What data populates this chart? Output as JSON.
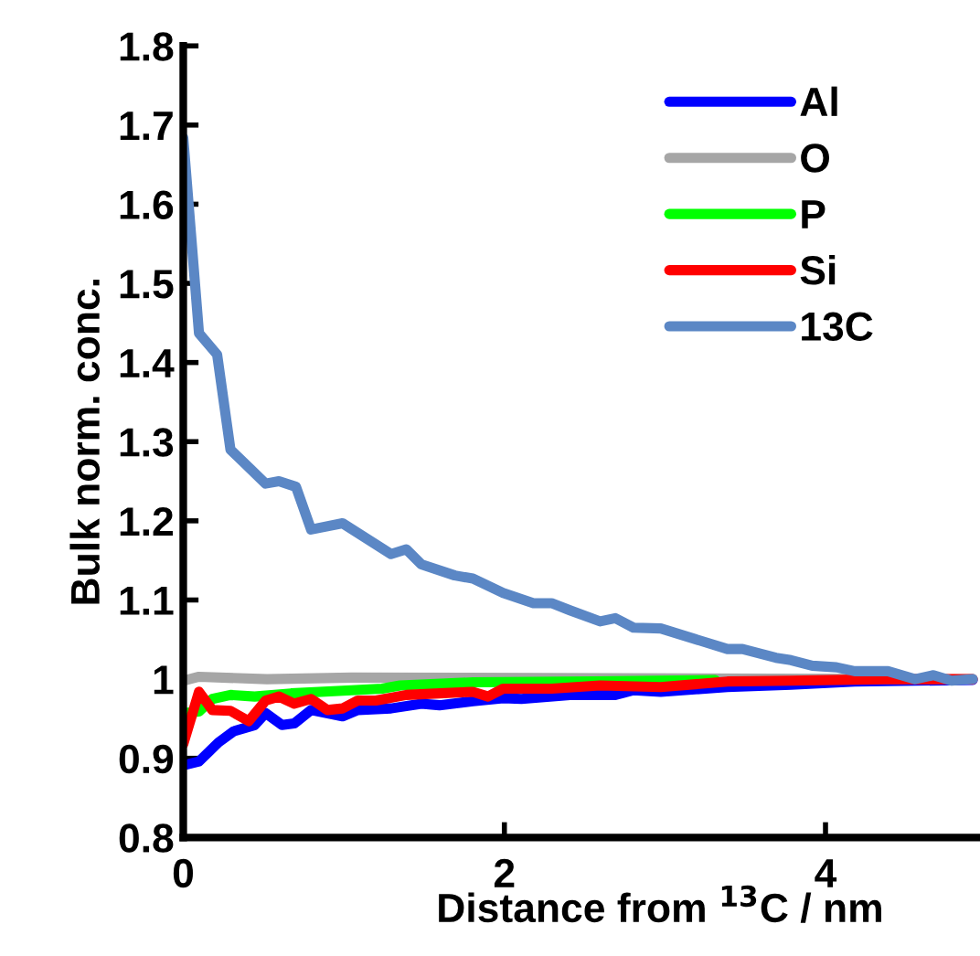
{
  "chart_data": {
    "type": "line",
    "xlabel": "Distance from $^{13}$C / nm",
    "ylabel": "Bulk norm. conc.",
    "xlim": [
      0,
      4.95
    ],
    "xticks": [
      0,
      2,
      4
    ],
    "ylim": [
      0.8,
      1.8
    ],
    "yticks": [
      0.8,
      0.9,
      {
        "value": 1.0,
        "label": "1"
      },
      1.1,
      1.2,
      1.3,
      1.4,
      1.5,
      1.6,
      1.7,
      1.8
    ],
    "grid": false,
    "legend": "top right",
    "marker": "none",
    "line_style": "solid",
    "series": [
      {
        "name": "Al",
        "color": "#0000ff",
        "x": [
          0,
          0.098,
          0.219,
          0.313,
          0.445,
          0.513,
          0.615,
          0.691,
          0.796,
          0.992,
          1.087,
          1.294,
          1.483,
          1.596,
          1.804,
          1.992,
          2.106,
          2.408,
          2.691,
          2.804,
          2.974,
          3.389,
          3.785,
          4.181,
          4.917
        ],
        "values": [
          0.891,
          0.896,
          0.92,
          0.934,
          0.942,
          0.957,
          0.942,
          0.944,
          0.961,
          0.953,
          0.961,
          0.963,
          0.969,
          0.967,
          0.972,
          0.976,
          0.975,
          0.98,
          0.98,
          0.986,
          0.984,
          0.99,
          0.993,
          0.997,
          0.999
        ]
      },
      {
        "name": "O",
        "color": "#a6a6a6",
        "x": [
          0,
          0.098,
          0.521,
          1.049,
          4.917
        ],
        "values": [
          0.998,
          1.003,
          1.0,
          1.002,
          1.0
        ]
      },
      {
        "name": "P",
        "color": "#00ff00",
        "x": [
          0,
          0.098,
          0.181,
          0.294,
          0.445,
          0.672,
          1.049,
          1.238,
          1.351,
          1.804,
          2.555,
          3.313
        ],
        "values": [
          0.957,
          0.959,
          0.975,
          0.98,
          0.978,
          0.982,
          0.986,
          0.988,
          0.992,
          0.996,
          0.997,
          0.999
        ]
      },
      {
        "name": "Si",
        "color": "#ff0000",
        "x": [
          0,
          0.098,
          0.181,
          0.294,
          0.408,
          0.513,
          0.596,
          0.691,
          0.796,
          0.898,
          0.992,
          1.087,
          1.2,
          1.389,
          1.596,
          1.804,
          1.898,
          1.992,
          2.294,
          2.596,
          2.974,
          3.389,
          3.785,
          4.37,
          4.917
        ],
        "values": [
          0.918,
          0.984,
          0.961,
          0.96,
          0.947,
          0.973,
          0.978,
          0.969,
          0.975,
          0.961,
          0.963,
          0.973,
          0.973,
          0.98,
          0.982,
          0.984,
          0.978,
          0.988,
          0.988,
          0.992,
          0.99,
          0.997,
          0.998,
          1.0,
          1.0
        ]
      },
      {
        "name": "13C",
        "color": "#5b87c5",
        "x": [
          0,
          0.098,
          0.211,
          0.294,
          0.513,
          0.596,
          0.702,
          0.796,
          0.992,
          1.294,
          1.389,
          1.483,
          1.691,
          1.804,
          1.992,
          2.181,
          2.294,
          2.408,
          2.596,
          2.691,
          2.804,
          2.974,
          3.389,
          3.483,
          3.691,
          3.785,
          3.917,
          4.068,
          4.181,
          4.389,
          4.558,
          4.672,
          4.785,
          4.917
        ],
        "values": [
          1.684,
          1.437,
          1.41,
          1.29,
          1.247,
          1.25,
          1.243,
          1.189,
          1.197,
          1.158,
          1.164,
          1.145,
          1.131,
          1.127,
          1.109,
          1.096,
          1.096,
          1.087,
          1.073,
          1.077,
          1.065,
          1.064,
          1.038,
          1.038,
          1.027,
          1.024,
          1.017,
          1.015,
          1.01,
          1.01,
          1.0,
          1.005,
          0.998,
          1.0
        ]
      }
    ]
  }
}
